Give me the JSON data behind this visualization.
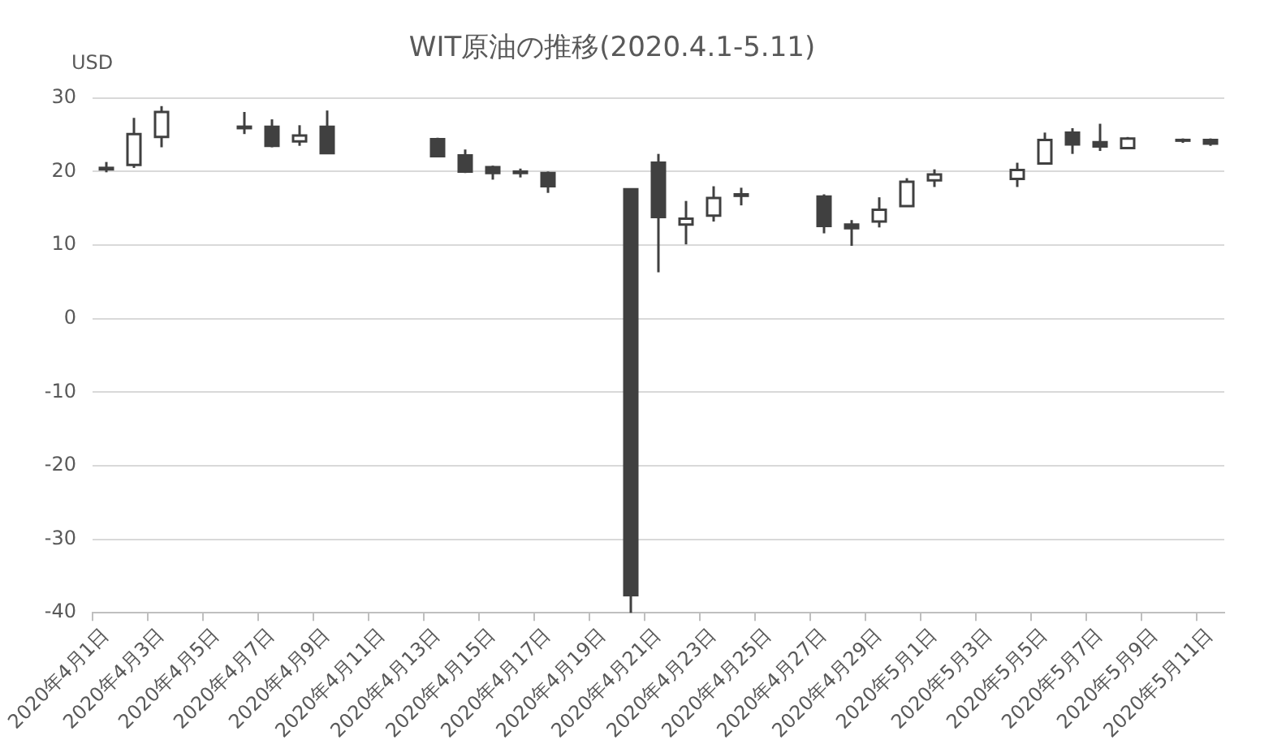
{
  "chart_data": {
    "type": "candlestick",
    "title": "WIT原油の推移(2020.4.1-5.11)",
    "ylabel": "USD",
    "categories": [
      "2020年4月1日",
      null,
      "2020年4月3日",
      null,
      "2020年4月5日",
      null,
      "2020年4月7日",
      null,
      "2020年4月9日",
      null,
      "2020年4月11日",
      null,
      "2020年4月13日",
      null,
      "2020年4月15日",
      null,
      "2020年4月17日",
      null,
      "2020年4月19日",
      null,
      "2020年4月21日",
      null,
      "2020年4月23日",
      null,
      "2020年4月25日",
      null,
      "2020年4月27日",
      null,
      "2020年4月29日",
      null,
      "2020年5月1日",
      null,
      "2020年5月3日",
      null,
      "2020年5月5日",
      null,
      "2020年5月7日",
      null,
      "2020年5月9日",
      null,
      "2020年5月11日"
    ],
    "ohlc": [
      [
        20.5,
        21.3,
        19.9,
        20.3
      ],
      [
        20.9,
        27.3,
        20.5,
        25.1
      ],
      [
        24.7,
        28.9,
        23.3,
        28.1
      ],
      null,
      null,
      [
        26.1,
        28.1,
        25.1,
        25.9
      ],
      [
        26.1,
        27.1,
        23.3,
        23.5
      ],
      [
        24.1,
        26.3,
        23.5,
        24.9
      ],
      [
        26.1,
        28.3,
        22.4,
        22.5
      ],
      null,
      null,
      null,
      [
        24.4,
        24.6,
        22.0,
        22.1
      ],
      [
        22.2,
        23.0,
        19.8,
        20.0
      ],
      [
        20.6,
        20.8,
        18.9,
        19.8
      ],
      [
        20.0,
        20.4,
        19.2,
        19.8
      ],
      [
        19.8,
        20.0,
        17.1,
        18.0
      ],
      null,
      null,
      [
        17.6,
        17.7,
        -40,
        -37.6
      ],
      [
        21.2,
        22.4,
        6.3,
        13.8
      ],
      [
        12.8,
        16.0,
        10.1,
        13.6
      ],
      [
        14.0,
        18.0,
        13.2,
        16.4
      ],
      [
        16.9,
        17.8,
        15.4,
        16.7
      ],
      null,
      null,
      [
        16.6,
        16.9,
        11.6,
        12.6
      ],
      [
        12.8,
        13.4,
        9.9,
        12.3
      ],
      [
        13.2,
        16.5,
        12.4,
        14.8
      ],
      [
        15.3,
        19.1,
        15.2,
        18.6
      ],
      [
        18.8,
        20.3,
        17.9,
        19.6
      ],
      null,
      null,
      [
        19.0,
        21.2,
        17.9,
        20.2
      ],
      [
        21.1,
        25.3,
        21.0,
        24.3
      ],
      [
        25.3,
        25.9,
        22.4,
        23.7
      ],
      [
        24.0,
        26.5,
        22.8,
        23.4
      ],
      [
        23.2,
        24.7,
        23.2,
        24.5
      ],
      null,
      [
        24.3,
        24.5,
        23.9,
        24.2
      ],
      [
        24.3,
        24.5,
        23.5,
        23.8
      ]
    ],
    "colors": [
      "#404040",
      "#ffffff",
      "#ffffff",
      null,
      null,
      "#404040",
      "#404040",
      "#ffffff",
      "#404040",
      null,
      null,
      null,
      "#404040",
      "#404040",
      "#404040",
      "#404040",
      "#404040",
      null,
      null,
      "#404040",
      "#404040",
      "#ffffff",
      "#ffffff",
      "#404040",
      null,
      null,
      "#404040",
      "#404040",
      "#ffffff",
      "#ffffff",
      "#ffffff",
      null,
      null,
      "#ffffff",
      "#ffffff",
      "#404040",
      "#404040",
      "#ffffff",
      null,
      "#404040",
      "#404040"
    ],
    "ylim": [
      -40,
      30
    ],
    "yticks": [
      -40,
      -30,
      -20,
      -10,
      0,
      10,
      20,
      30
    ],
    "grid": "y"
  }
}
